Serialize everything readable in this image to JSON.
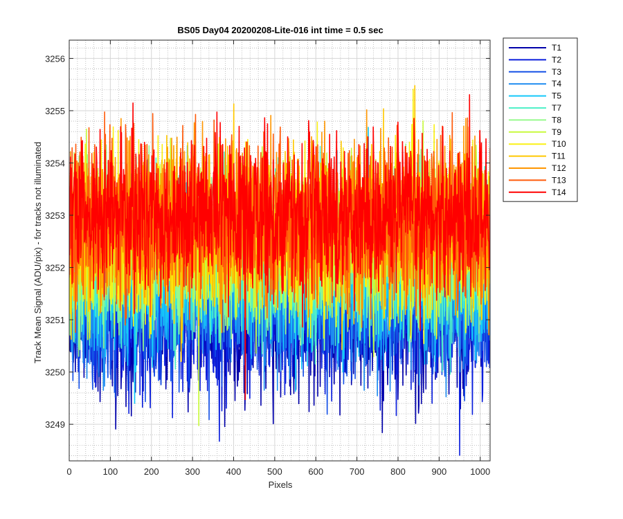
{
  "chart_data": {
    "type": "line",
    "title": "BS05 Day04 20200208-Lite-016 int time = 0.5 sec",
    "xlabel": "Pixels",
    "ylabel": "Track Mean Signal (ADU/pix) - for tracks not illuminated",
    "xlim": [
      0,
      1024
    ],
    "ylim": [
      3248.3,
      3256.35
    ],
    "xticks": [
      0,
      100,
      200,
      300,
      400,
      500,
      600,
      700,
      800,
      900,
      1000
    ],
    "yticks": [
      3249,
      3250,
      3251,
      3252,
      3253,
      3254,
      3255,
      3256
    ],
    "grid": true,
    "minor_grid": true,
    "legend_position": "outside-top-right",
    "series": [
      {
        "name": "T1",
        "color": "#0000AA",
        "mean": 3251.0,
        "spread": 1.05
      },
      {
        "name": "T2",
        "color": "#0A1EDC",
        "mean": 3251.1,
        "spread": 1.05
      },
      {
        "name": "T3",
        "color": "#1450E6",
        "mean": 3251.4,
        "spread": 1.05
      },
      {
        "name": "T4",
        "color": "#1E8CF0",
        "mean": 3251.6,
        "spread": 1.05
      },
      {
        "name": "T5",
        "color": "#14C8FA",
        "mean": 3251.9,
        "spread": 1.05
      },
      {
        "name": "T7",
        "color": "#50F0C8",
        "mean": 3252.1,
        "spread": 1.05
      },
      {
        "name": "T8",
        "color": "#96FA8C",
        "mean": 3252.3,
        "spread": 1.05
      },
      {
        "name": "T9",
        "color": "#C8FA3C",
        "mean": 3252.5,
        "spread": 1.05
      },
      {
        "name": "T10",
        "color": "#FAF014",
        "mean": 3252.6,
        "spread": 1.05
      },
      {
        "name": "T11",
        "color": "#FFC800",
        "mean": 3252.7,
        "spread": 1.05
      },
      {
        "name": "T12",
        "color": "#FF9600",
        "mean": 3252.8,
        "spread": 1.05
      },
      {
        "name": "T13",
        "color": "#FF5A0A",
        "mean": 3252.9,
        "spread": 1.05
      },
      {
        "name": "T14",
        "color": "#FF0000",
        "mean": 3253.0,
        "spread": 1.05
      }
    ],
    "samples_per_series": 1024
  }
}
